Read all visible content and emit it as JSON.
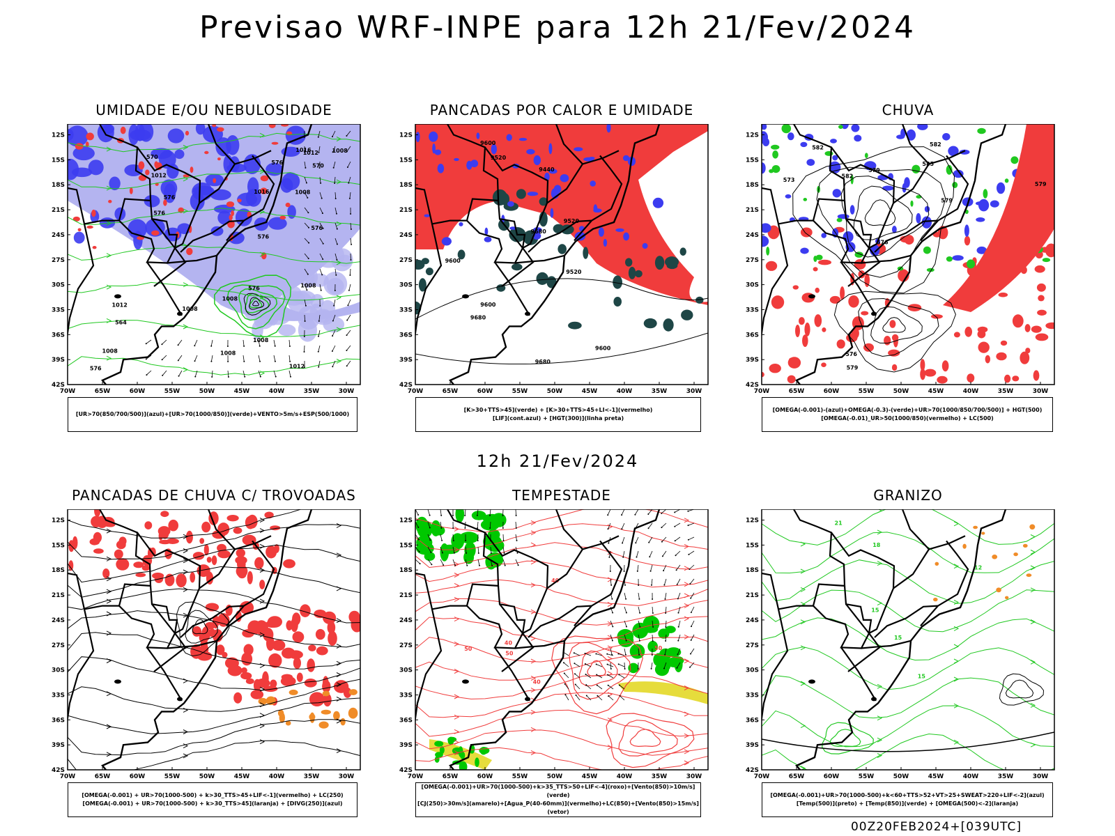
{
  "main_title": "Previsao WRF-INPE  para 12h 21/Fev/2024",
  "mid_title": "12h 21/Fev/2024",
  "footer": "00Z20FEB2024+[039UTC]",
  "axes": {
    "lat": [
      "12S",
      "15S",
      "18S",
      "21S",
      "24S",
      "27S",
      "30S",
      "33S",
      "36S",
      "39S",
      "42S"
    ],
    "lon": [
      "70W",
      "65W",
      "60W",
      "55W",
      "50W",
      "45W",
      "40W",
      "35W",
      "30W"
    ]
  },
  "colors": {
    "red": "#f03c3c",
    "blue": "#3c3cf0",
    "lavender": "#b4b4f0",
    "green": "#20c820",
    "darkteal": "#1e4646",
    "orange": "#f08c28",
    "yellow": "#e6dc3c",
    "brightgreen": "#00c800"
  },
  "panels": [
    {
      "title": "UMIDADE E/OU NEBULOSIDADE",
      "legend": [
        "[UR>70(850/700/500)](azul)+[UR>70(1000/850)](verde)+VENTO>5m/s+ESP(500/1000)"
      ]
    },
    {
      "title": "PANCADAS POR CALOR E UMIDADE",
      "legend": [
        "[K>30+TTS>45](verde) + [K>30+TTS>45+LI<-1](vermelho)",
        "[LIF](cont.azul) + [HGT(300)](linha preta)"
      ]
    },
    {
      "title": "CHUVA",
      "legend": [
        "[OMEGA(-0.001)-(azul)+OMEGA(-0.3)-(verde)+UR>70(1000/850/700/500)] + HGT(500)",
        "[OMEGA(-0.01)_UR>50(1000/850)(vermelho) + LC(500)"
      ]
    },
    {
      "title": "PANCADAS DE CHUVA C/ TROVOADAS",
      "legend": [
        "[OMEGA(-0.001) + UR>70(1000-500) + k>30_TTS>45+LIF<-1](vermelho) + LC(250)",
        "[OMEGA(-0.001) + UR>70(1000-500) + k>30_TTS>45](laranja) + [DIVG(250)](azul)"
      ]
    },
    {
      "title": "TEMPESTADE",
      "legend": [
        "[OMEGA(-0.001)+UR>70(1000-500)+k>35_TTS>50+LIF<-4](roxo)+[Vento(850)>10m/s](verde)",
        "[CJ(250)>30m/s](amarelo)+[Agua_P(40-60mm)](vermelho)+LC(850)+[Vento(850)>15m/s](vetor)"
      ]
    },
    {
      "title": "GRANIZO",
      "legend": [
        "[OMEGA(-0.001)+UR>70(1000-500)+k<60+TTS>52+VT>25+SWEAT>220+LIF<-2](azul)",
        "[Temp(500)](preto) + [Temp(850)](verde) + [OMEGA(500)<-2](laranja)"
      ]
    }
  ],
  "contour_labels": {
    "p1": [
      "1012",
      "1012",
      "1008",
      "1008",
      "1008",
      "1008",
      "1016",
      "1012",
      "1008",
      "1012",
      "1008",
      "1016",
      "1008",
      "1008",
      "576",
      "576",
      "576",
      "576",
      "576",
      "576",
      "576",
      "570",
      "570",
      "564"
    ],
    "p2": [
      "9680",
      "9600",
      "9520",
      "9600",
      "9520",
      "9600",
      "9680",
      "9680",
      "9600",
      "9520",
      "9440"
    ],
    "p3": [
      "585",
      "582",
      "579",
      "579",
      "576",
      "573",
      "582",
      "576",
      "579",
      "582",
      "579"
    ],
    "p5": [
      "40",
      "50",
      "50",
      "40",
      "50",
      "40"
    ],
    "p6": [
      "12",
      "15",
      "18",
      "21",
      "15",
      "15"
    ]
  }
}
